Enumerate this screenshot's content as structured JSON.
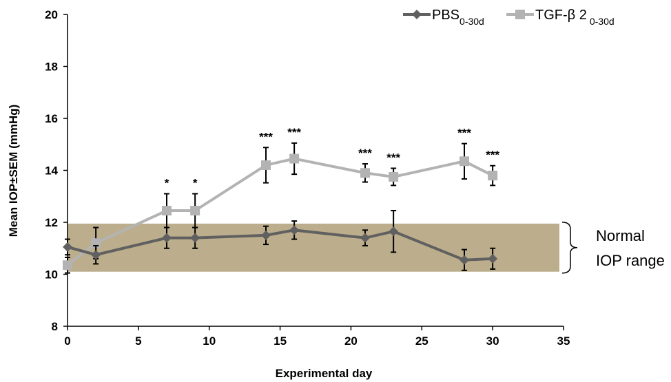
{
  "chart_data": {
    "type": "line",
    "title": "",
    "xlabel": "Experimental day",
    "ylabel": "Mean IOP±SEM (mmHg)",
    "xlim": [
      0,
      35
    ],
    "ylim": [
      8,
      20
    ],
    "xticks": [
      0,
      5,
      10,
      15,
      20,
      25,
      30,
      35
    ],
    "yticks": [
      8,
      10,
      12,
      14,
      16,
      18,
      20
    ],
    "grid": false,
    "legend_position": "top-right",
    "normal_range": {
      "low": 10.1,
      "high": 11.95,
      "label_line1": "Normal",
      "label_line2": "IOP range",
      "color": "#bcae8c"
    },
    "series": [
      {
        "name": "PBS",
        "name_subscript": "0-30d",
        "marker": "diamond",
        "color": "#606060",
        "x": [
          0,
          2,
          7,
          9,
          14,
          16,
          21,
          23,
          28,
          30
        ],
        "y": [
          11.05,
          10.75,
          11.4,
          11.4,
          11.5,
          11.7,
          11.4,
          11.65,
          10.55,
          10.6
        ],
        "err": [
          0.3,
          0.35,
          0.4,
          0.4,
          0.35,
          0.35,
          0.3,
          0.8,
          0.4,
          0.4
        ]
      },
      {
        "name": "TGF-β 2",
        "name_subscript": "0-30d",
        "marker": "square",
        "color": "#b3b3b3",
        "x": [
          0,
          2,
          7,
          9,
          14,
          16,
          21,
          23,
          28,
          30
        ],
        "y": [
          10.35,
          11.2,
          12.45,
          12.45,
          14.2,
          14.45,
          13.9,
          13.75,
          14.35,
          13.8
        ],
        "err": [
          0.3,
          0.6,
          0.65,
          0.65,
          0.68,
          0.6,
          0.35,
          0.33,
          0.68,
          0.38
        ]
      }
    ],
    "annotations": [
      {
        "x": 7,
        "text": "*"
      },
      {
        "x": 9,
        "text": "*"
      },
      {
        "x": 14,
        "text": "***"
      },
      {
        "x": 16,
        "text": "***"
      },
      {
        "x": 21,
        "text": "***"
      },
      {
        "x": 23,
        "text": "***"
      },
      {
        "x": 28,
        "text": "***"
      },
      {
        "x": 30,
        "text": "***"
      }
    ]
  }
}
